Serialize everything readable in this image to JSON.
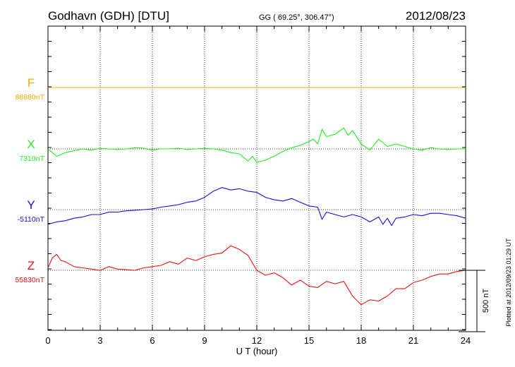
{
  "header": {
    "station": "Godhavn (GDH)  [DTU]",
    "coords": "GG ( 69.25°, 306.47°)",
    "date": "2012/08/23"
  },
  "footer": {
    "plotted": "Plotted at 2012/09/23 01:29 UT",
    "scale_label": "500 nT"
  },
  "chart_data": {
    "type": "line",
    "title": "Godhavn (GDH)  [DTU]",
    "xlabel": "U T (hour)",
    "x_ticks": [
      "0",
      "3",
      "6",
      "9",
      "12",
      "15",
      "18",
      "21",
      "24"
    ],
    "xlim": [
      0,
      24
    ],
    "grid": true,
    "scale_bar_nT": 500,
    "colors": {
      "F": "#ffaa00",
      "X": "#22ee22",
      "Y": "#1111dd",
      "Z": "#ee1111"
    },
    "series": [
      {
        "name": "F",
        "baseline_label": "88880nT",
        "baseline_nT": 88880,
        "x": [
          0,
          24
        ],
        "values": [
          0,
          0
        ]
      },
      {
        "name": "X",
        "baseline_label": "7310nT",
        "baseline_nT": 7310,
        "x": [
          0,
          0.5,
          1,
          1.5,
          2,
          2.5,
          3,
          3.5,
          4,
          4.5,
          5,
          5.5,
          6,
          6.5,
          7,
          7.5,
          8,
          8.5,
          9,
          9.5,
          10,
          10.5,
          11,
          11.25,
          11.5,
          11.75,
          12,
          12.5,
          13,
          13.5,
          14,
          14.5,
          15,
          15.25,
          15.5,
          15.75,
          16,
          16.5,
          17,
          17.25,
          17.5,
          18,
          18.5,
          19,
          19.5,
          20,
          20.5,
          21,
          21.5,
          22,
          22.5,
          23,
          23.5,
          24
        ],
        "values": [
          0,
          -60,
          -30,
          -15,
          0,
          -10,
          5,
          0,
          -5,
          0,
          10,
          5,
          -10,
          0,
          0,
          5,
          -5,
          0,
          5,
          0,
          -10,
          -30,
          -40,
          -70,
          -100,
          -60,
          -110,
          -90,
          -60,
          -20,
          10,
          30,
          60,
          80,
          40,
          160,
          100,
          120,
          170,
          110,
          150,
          40,
          -10,
          80,
          20,
          40,
          20,
          0,
          -10,
          10,
          0,
          -5,
          0,
          0
        ]
      },
      {
        "name": "Y",
        "baseline_label": "-5110nT",
        "baseline_nT": -5110,
        "x": [
          0,
          0.5,
          1,
          1.5,
          2,
          2.5,
          3,
          3.5,
          4,
          4.5,
          5,
          5.5,
          6,
          6.5,
          7,
          7.5,
          8,
          8.5,
          9,
          9.5,
          10,
          10.5,
          11,
          11.5,
          12,
          12.5,
          13,
          13.5,
          14,
          14.5,
          15,
          15.5,
          15.75,
          16,
          16.5,
          17,
          17.5,
          18,
          18.5,
          19,
          19.25,
          19.5,
          19.75,
          20,
          20.5,
          21,
          21.5,
          22,
          22.5,
          23,
          23.5,
          24
        ],
        "values": [
          -120,
          -100,
          -90,
          -70,
          -60,
          -40,
          -40,
          -20,
          -20,
          -10,
          -5,
          0,
          5,
          20,
          30,
          40,
          60,
          70,
          100,
          150,
          180,
          160,
          170,
          150,
          140,
          100,
          80,
          70,
          90,
          60,
          30,
          20,
          -80,
          -20,
          -40,
          -60,
          -40,
          -60,
          -100,
          -60,
          -120,
          -70,
          -130,
          -70,
          -60,
          -40,
          -50,
          -30,
          -30,
          -40,
          -50,
          -70
        ]
      },
      {
        "name": "Z",
        "baseline_label": "55830nT",
        "baseline_nT": 55830,
        "x": [
          0,
          0.25,
          0.5,
          0.75,
          1,
          1.5,
          2,
          2.5,
          3,
          3.5,
          4,
          4.5,
          5,
          5.5,
          6,
          6.5,
          7,
          7.5,
          8,
          8.5,
          9,
          9.5,
          10,
          10.5,
          11,
          11.5,
          12,
          12.5,
          13,
          13.5,
          14,
          14.5,
          15,
          15.5,
          16,
          16.5,
          17,
          17.5,
          18,
          18.5,
          19,
          19.5,
          20,
          20.5,
          21,
          21.5,
          22,
          22.5,
          23,
          23.5,
          24
        ],
        "values": [
          20,
          100,
          130,
          80,
          70,
          30,
          20,
          10,
          0,
          30,
          10,
          5,
          0,
          20,
          30,
          40,
          70,
          50,
          100,
          80,
          110,
          130,
          140,
          200,
          170,
          120,
          0,
          -40,
          -20,
          -60,
          -120,
          -80,
          -130,
          -140,
          -90,
          -110,
          -90,
          -210,
          -280,
          -240,
          -250,
          -210,
          -150,
          -150,
          -100,
          -80,
          -50,
          -30,
          -30,
          -10,
          0
        ]
      }
    ]
  }
}
